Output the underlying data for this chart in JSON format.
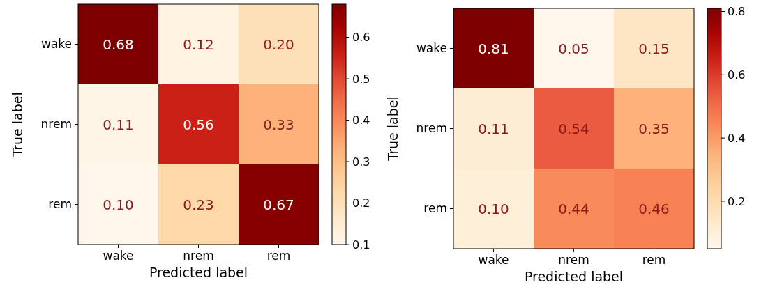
{
  "chart_data": [
    {
      "type": "heatmap",
      "xlabel": "Predicted label",
      "ylabel": "True label",
      "categories": [
        "wake",
        "nrem",
        "rem"
      ],
      "y_categories": [
        "wake",
        "nrem",
        "rem"
      ],
      "cells": [
        [
          0.68,
          0.12,
          0.2
        ],
        [
          0.11,
          0.56,
          0.33
        ],
        [
          0.1,
          0.23,
          0.67
        ]
      ],
      "cell_labels": [
        [
          "0.68",
          "0.12",
          "0.20"
        ],
        [
          "0.11",
          "0.56",
          "0.33"
        ],
        [
          "0.10",
          "0.23",
          "0.67"
        ]
      ],
      "data_labels": true,
      "clim": [
        0.1,
        0.68
      ],
      "cticks": [
        0.1,
        0.2,
        0.3,
        0.4,
        0.5,
        0.6
      ]
    },
    {
      "type": "heatmap",
      "xlabel": "Predicted label",
      "ylabel": "True label",
      "categories": [
        "wake",
        "nrem",
        "rem"
      ],
      "y_categories": [
        "wake",
        "nrem",
        "rem"
      ],
      "cells": [
        [
          0.81,
          0.05,
          0.15
        ],
        [
          0.11,
          0.54,
          0.35
        ],
        [
          0.1,
          0.44,
          0.46
        ]
      ],
      "cell_labels": [
        [
          "0.81",
          "0.05",
          "0.15"
        ],
        [
          "0.11",
          "0.54",
          "0.35"
        ],
        [
          "0.10",
          "0.44",
          "0.46"
        ]
      ],
      "data_labels": true,
      "clim": [
        0.05,
        0.81
      ],
      "cticks": [
        0.2,
        0.4,
        0.6,
        0.8
      ]
    }
  ]
}
